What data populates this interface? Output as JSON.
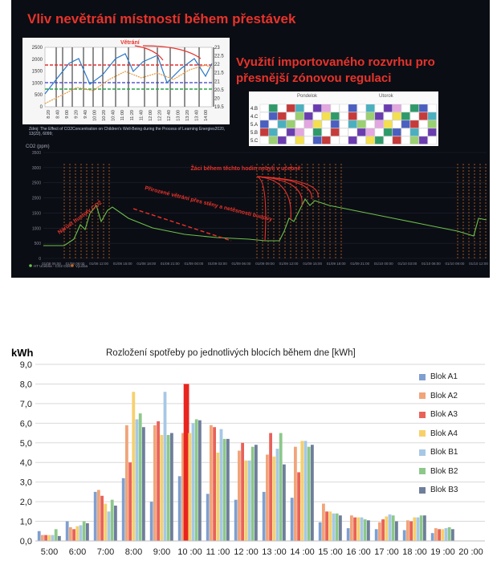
{
  "top_panel": {
    "title": "Vliv nevětrání místností během přestávek",
    "subtitle": "Využití importovaného rozvrhu pro přesnější zónovou regulaci",
    "inset": {
      "annotation": "Větrání",
      "left_ticks": [
        "2500",
        "2000",
        "1500",
        "1000",
        "500",
        "0"
      ],
      "right_ticks": [
        "23",
        "22.5",
        "22",
        "21.5",
        "21",
        "20.5",
        "20",
        "19.5"
      ],
      "time_ticks": [
        "8:20",
        "8:40",
        "9:00",
        "9:20",
        "9:40",
        "10:00",
        "10:20",
        "10:40",
        "11:00",
        "11:20",
        "11:40",
        "12:00",
        "12:20",
        "12:40",
        "13:00",
        "13:20",
        "13:40",
        "14:00"
      ],
      "citation": "Zdroj: The Effect of CO2Concentration on Children's Well-Being during the Process of Learning Energies2020, 13(22), 6099;"
    },
    "schedule": {
      "day1": "Pondelok",
      "day2": "Utorok",
      "classes": [
        "4.B",
        "4.C",
        "5.A",
        "5.B",
        "5.C"
      ]
    },
    "co2_chart": {
      "ylabel": "CO2 (ppm)",
      "yticks": [
        "3500",
        "3000",
        "2500",
        "2000",
        "1500",
        "1000",
        "500",
        "0"
      ],
      "xticks": [
        "01/08 06:00",
        "01/08 09:00",
        "01/08 12:00",
        "01/08 15:00",
        "01/08 18:00",
        "01/08 21:00",
        "01/09 00:00",
        "01/09 03:00",
        "01/09 06:00",
        "01/09 09:00",
        "01/09 12:00",
        "01/09 15:00",
        "01/09 18:00",
        "01/09 21:00",
        "01/10 00:00",
        "01/10 03:00",
        "01/10 06:00",
        "01/10 09:00",
        "01/10 12:00"
      ],
      "legend": [
        "HT Učebňa - CO2 ODO",
        "Výučba"
      ],
      "annotations": {
        "rise": "Nárůst hustoty CO2",
        "natural": "Přirozené větrání přes stěny a netěsnosti budovy",
        "absent": "Žáci během těchto hodin nebyli v učebně"
      }
    }
  },
  "chart_data": {
    "type": "bar",
    "title": "Rozložení spotřeby po jednotlivých blocích během dne [kWh]",
    "ylabel": "kWh",
    "ylim": [
      0,
      9
    ],
    "yticks": [
      "0,0",
      "1,0",
      "2,0",
      "3,0",
      "4,0",
      "5,0",
      "6,0",
      "7,0",
      "8,0",
      "9,0"
    ],
    "categories": [
      "5:00",
      "6:00",
      "7:00",
      "8:00",
      "9:00",
      "10 :00",
      "11 :00",
      "12 :00",
      "13 :00",
      "14 :00",
      "15 :00",
      "16 :00",
      "17 :00",
      "18 :00",
      "19 :00",
      "20 :00"
    ],
    "legend_position": "right",
    "grid": true,
    "highlight": {
      "series": "Blok A3",
      "category": "10 :00"
    },
    "series": [
      {
        "name": "Blok A1",
        "color": "#7f9fd0",
        "values": [
          0.5,
          1.0,
          2.5,
          3.2,
          2.0,
          3.3,
          2.4,
          2.1,
          2.5,
          2.2,
          0.95,
          0.65,
          0.6,
          0.55,
          0.4,
          0
        ]
      },
      {
        "name": "Blok A2",
        "color": "#f0a57a",
        "values": [
          0.3,
          0.7,
          2.6,
          5.9,
          5.9,
          5.5,
          5.9,
          4.6,
          4.4,
          4.8,
          1.9,
          1.3,
          0.95,
          1.05,
          0.65,
          0
        ]
      },
      {
        "name": "Blok A3",
        "color": "#e8625a",
        "values": [
          0.3,
          0.6,
          2.3,
          4.0,
          6.1,
          8.0,
          5.8,
          5.0,
          5.5,
          3.5,
          1.5,
          1.2,
          1.1,
          1.0,
          0.6,
          0
        ]
      },
      {
        "name": "Blok A4",
        "color": "#f7d06c",
        "values": [
          0.3,
          0.75,
          1.9,
          7.6,
          5.4,
          5.5,
          4.5,
          4.1,
          4.3,
          5.1,
          1.5,
          1.2,
          1.25,
          1.2,
          0.6,
          0
        ]
      },
      {
        "name": "Blok B1",
        "color": "#a6c8e6",
        "values": [
          0.3,
          0.8,
          1.5,
          6.2,
          7.6,
          6.0,
          5.7,
          4.1,
          4.7,
          5.1,
          1.4,
          1.2,
          1.35,
          1.2,
          0.65,
          0
        ]
      },
      {
        "name": "Blok B2",
        "color": "#8dc88a",
        "values": [
          0.6,
          1.0,
          2.1,
          6.5,
          5.4,
          6.2,
          5.2,
          4.8,
          5.5,
          4.8,
          1.4,
          1.1,
          1.3,
          1.3,
          0.7,
          0
        ]
      },
      {
        "name": "Blok B3",
        "color": "#6f7e9c",
        "values": [
          0.25,
          0.9,
          1.8,
          5.8,
          5.5,
          6.15,
          5.2,
          4.9,
          3.9,
          4.9,
          1.3,
          1.05,
          1.0,
          1.3,
          0.6,
          0
        ]
      }
    ]
  }
}
